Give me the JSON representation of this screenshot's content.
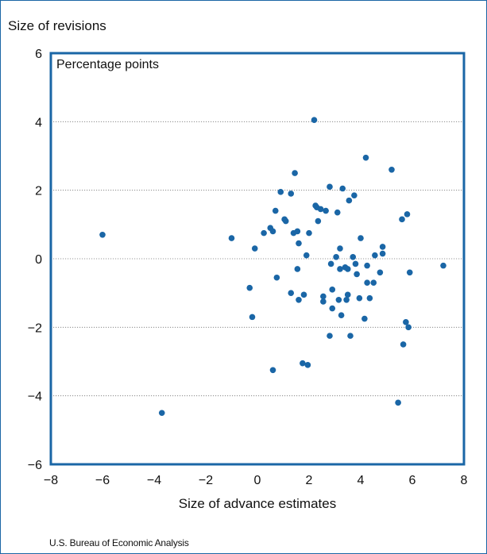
{
  "chart_data": {
    "type": "scatter",
    "title": "",
    "ylabel": "Size of revisions",
    "units": "Percentage points",
    "xlabel": "Size of advance estimates",
    "xlim": [
      -8,
      8
    ],
    "ylim": [
      -6,
      6
    ],
    "xticks": [
      "−8",
      "−6",
      "−4",
      "−2",
      "0",
      "2",
      "4",
      "6",
      "8"
    ],
    "yticks": [
      "6",
      "4",
      "2",
      "0",
      "−2",
      "−4",
      "−6"
    ],
    "ytick_values": [
      6,
      4,
      2,
      0,
      -2,
      -4,
      -6
    ],
    "xtick_values": [
      -8,
      -6,
      -4,
      -2,
      0,
      2,
      4,
      6,
      8
    ],
    "gridlines": "dotted horizontal",
    "grid_values": [
      4,
      2,
      0,
      -2,
      -4
    ],
    "source": "U.S. Bureau of Economic Analysis",
    "colors": {
      "marker": "#1a66a6",
      "frame": "#1a66a6",
      "grid": "#777777"
    },
    "points": [
      [
        -6.0,
        0.7
      ],
      [
        -3.7,
        -4.5
      ],
      [
        -1.0,
        0.6
      ],
      [
        -0.3,
        -0.85
      ],
      [
        -0.2,
        -1.7
      ],
      [
        -0.1,
        0.3
      ],
      [
        0.25,
        0.75
      ],
      [
        0.5,
        0.9
      ],
      [
        0.6,
        0.8
      ],
      [
        0.6,
        -3.25
      ],
      [
        0.7,
        1.4
      ],
      [
        0.75,
        -0.55
      ],
      [
        0.9,
        1.95
      ],
      [
        1.05,
        1.15
      ],
      [
        1.1,
        1.1
      ],
      [
        1.3,
        1.9
      ],
      [
        1.3,
        -1.0
      ],
      [
        1.4,
        0.75
      ],
      [
        1.45,
        2.5
      ],
      [
        1.55,
        0.8
      ],
      [
        1.55,
        -0.3
      ],
      [
        1.6,
        0.45
      ],
      [
        1.6,
        -1.2
      ],
      [
        1.75,
        -3.05
      ],
      [
        1.8,
        -1.05
      ],
      [
        1.9,
        0.1
      ],
      [
        1.95,
        -3.1
      ],
      [
        2.0,
        0.75
      ],
      [
        2.2,
        4.05
      ],
      [
        2.25,
        1.55
      ],
      [
        2.3,
        1.5
      ],
      [
        2.35,
        1.1
      ],
      [
        2.45,
        1.45
      ],
      [
        2.55,
        -1.1
      ],
      [
        2.55,
        -1.25
      ],
      [
        2.65,
        1.4
      ],
      [
        2.8,
        2.1
      ],
      [
        2.8,
        -2.25
      ],
      [
        2.85,
        -0.15
      ],
      [
        2.9,
        -0.9
      ],
      [
        2.9,
        -1.45
      ],
      [
        3.05,
        0.05
      ],
      [
        3.1,
        1.35
      ],
      [
        3.15,
        -1.2
      ],
      [
        3.2,
        0.3
      ],
      [
        3.2,
        -0.3
      ],
      [
        3.25,
        -1.65
      ],
      [
        3.3,
        2.05
      ],
      [
        3.4,
        -0.25
      ],
      [
        3.45,
        -1.2
      ],
      [
        3.5,
        -1.05
      ],
      [
        3.5,
        -0.3
      ],
      [
        3.55,
        1.7
      ],
      [
        3.6,
        -2.25
      ],
      [
        3.7,
        0.05
      ],
      [
        3.75,
        1.85
      ],
      [
        3.8,
        -0.15
      ],
      [
        3.85,
        -0.45
      ],
      [
        3.95,
        -1.15
      ],
      [
        4.0,
        0.6
      ],
      [
        4.15,
        -1.75
      ],
      [
        4.2,
        2.95
      ],
      [
        4.25,
        -0.7
      ],
      [
        4.25,
        -0.2
      ],
      [
        4.35,
        -1.15
      ],
      [
        4.5,
        -0.7
      ],
      [
        4.55,
        0.1
      ],
      [
        4.75,
        -0.4
      ],
      [
        4.85,
        0.15
      ],
      [
        4.85,
        0.35
      ],
      [
        5.2,
        2.6
      ],
      [
        5.45,
        -4.2
      ],
      [
        5.6,
        1.15
      ],
      [
        5.65,
        -2.5
      ],
      [
        5.75,
        -1.85
      ],
      [
        5.8,
        1.3
      ],
      [
        5.85,
        -2.0
      ],
      [
        5.9,
        -0.4
      ],
      [
        7.2,
        -0.2
      ]
    ]
  }
}
